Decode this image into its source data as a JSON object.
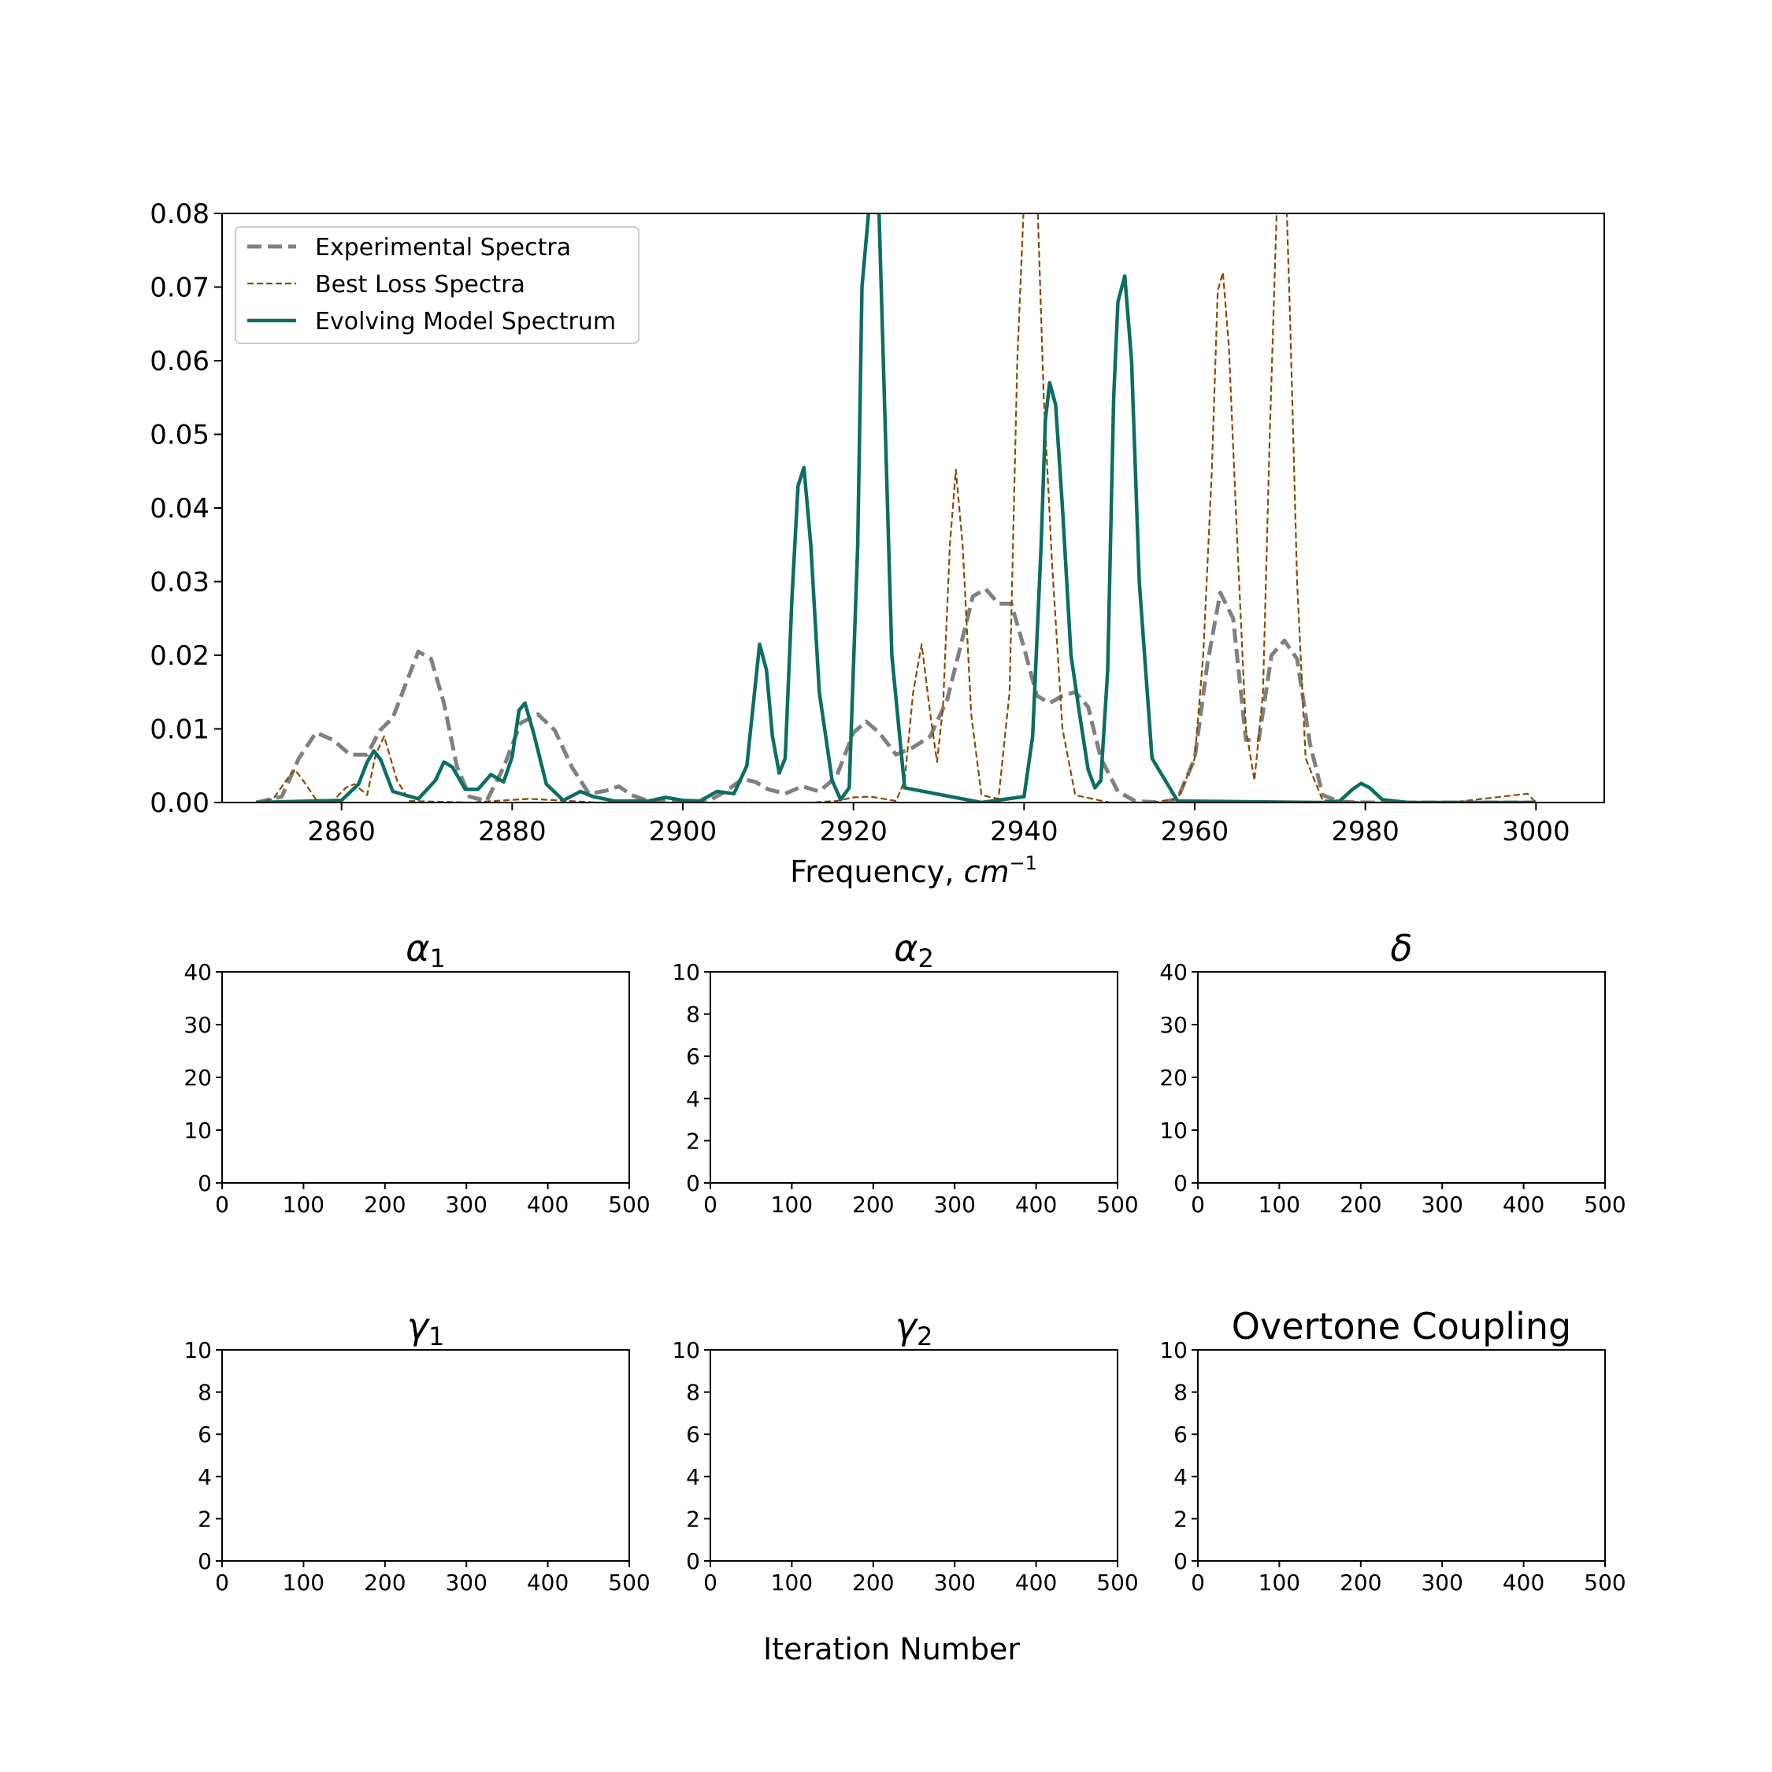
{
  "chart_data": [
    {
      "type": "line",
      "title": "",
      "xlabel": "Frequency, ",
      "xlabel_italic": "cm",
      "xlabel_sup": "−1",
      "ylabel": "",
      "xlim": [
        2846,
        3008
      ],
      "ylim": [
        0,
        0.08
      ],
      "xticks": [
        "2860",
        "2880",
        "2900",
        "2920",
        "2940",
        "2960",
        "2980",
        "3000"
      ],
      "xtick_values": [
        2860,
        2880,
        2900,
        2920,
        2940,
        2960,
        2980,
        3000
      ],
      "yticks": [
        "0.00",
        "0.01",
        "0.02",
        "0.03",
        "0.04",
        "0.05",
        "0.06",
        "0.07",
        "0.08"
      ],
      "ytick_values": [
        0,
        0.01,
        0.02,
        0.03,
        0.04,
        0.05,
        0.06,
        0.07,
        0.08
      ],
      "grid": false,
      "legend_position": "top-left",
      "series": [
        {
          "name": "Experimental Spectra",
          "color": "#808080",
          "style": "dashed-thick",
          "x": [
            2850,
            2853,
            2855,
            2857,
            2859,
            2861,
            2863,
            2864.5,
            2866,
            2867.5,
            2869,
            2870.5,
            2872,
            2873.5,
            2875,
            2877,
            2879,
            2881,
            2883,
            2885,
            2887,
            2889,
            2891,
            2892.5,
            2894,
            2896,
            2898,
            2900,
            2903,
            2905,
            2907,
            2908.5,
            2910,
            2912,
            2914,
            2916,
            2918,
            2920,
            2921.5,
            2923,
            2925,
            2927,
            2929,
            2931,
            2932.5,
            2934,
            2935.5,
            2937,
            2938.5,
            2940,
            2941.5,
            2943,
            2944.5,
            2946,
            2947.5,
            2949,
            2951,
            2953,
            2956,
            2958,
            2960,
            2961.5,
            2963,
            2964.5,
            2966,
            2967.5,
            2969,
            2970.5,
            2972,
            2973.5,
            2975,
            2977,
            2980,
            2985,
            2990,
            2995,
            3000
          ],
          "y": [
            0,
            0.0008,
            0.006,
            0.0095,
            0.0085,
            0.0065,
            0.0065,
            0.0098,
            0.0115,
            0.016,
            0.0205,
            0.0195,
            0.0135,
            0.005,
            0.0008,
            0.0002,
            0.0048,
            0.0108,
            0.012,
            0.0098,
            0.0048,
            0.0012,
            0.0016,
            0.0022,
            0.001,
            0.0002,
            0.0002,
            0.0002,
            0.0002,
            0.0015,
            0.0032,
            0.0028,
            0.0018,
            0.0012,
            0.0022,
            0.0015,
            0.0035,
            0.0095,
            0.011,
            0.0095,
            0.0065,
            0.0075,
            0.009,
            0.014,
            0.021,
            0.028,
            0.029,
            0.027,
            0.027,
            0.021,
            0.0145,
            0.0135,
            0.0145,
            0.015,
            0.013,
            0.006,
            0.0015,
            0.0002,
            0,
            0.0005,
            0.006,
            0.019,
            0.0285,
            0.025,
            0.0085,
            0.0085,
            0.02,
            0.022,
            0.0195,
            0.008,
            0.001,
            0.0001,
            0,
            0,
            0,
            0,
            0
          ]
        },
        {
          "name": "Best Loss Spectra",
          "color": "#8b4a00",
          "style": "dashed-thin",
          "x": [
            2850,
            2852,
            2853.5,
            2854.5,
            2855.5,
            2857,
            2859,
            2860.5,
            2861.5,
            2863,
            2864,
            2865,
            2866.5,
            2868,
            2875,
            2882,
            2890,
            2900,
            2915,
            2918,
            2920,
            2922,
            2925,
            2926,
            2927,
            2928,
            2929,
            2929.8,
            2930.5,
            2931.3,
            2932,
            2932.8,
            2933.8,
            2935,
            2937,
            2938.3,
            2939.2,
            2940,
            2941.2,
            2942.3,
            2943.3,
            2944.5,
            2946,
            2950,
            2955,
            2958,
            2960,
            2961,
            2962,
            2962.7,
            2963.3,
            2964,
            2965,
            2966,
            2967,
            2968,
            2968.8,
            2969.6,
            2970.4,
            2971.2,
            2972,
            2973,
            2975,
            2980,
            2990,
            2999,
            3000
          ],
          "y": [
            0,
            0.0005,
            0.003,
            0.0045,
            0.003,
            0.0004,
            0.0002,
            0.002,
            0.0025,
            0.001,
            0.0065,
            0.009,
            0.003,
            0.0002,
            0,
            0.0005,
            0,
            0,
            0,
            0.0002,
            0.0007,
            0.0008,
            0.0002,
            0.003,
            0.015,
            0.0215,
            0.012,
            0.0055,
            0.013,
            0.035,
            0.0452,
            0.035,
            0.012,
            0.001,
            0.0005,
            0.015,
            0.06,
            0.082,
            0.095,
            0.055,
            0.032,
            0.01,
            0.001,
            0,
            0,
            0.0005,
            0.006,
            0.02,
            0.045,
            0.0695,
            0.072,
            0.062,
            0.035,
            0.01,
            0.003,
            0.015,
            0.05,
            0.08,
            0.095,
            0.065,
            0.03,
            0.006,
            0.0003,
            0,
            0,
            0.0012,
            0
          ]
        },
        {
          "name": "Evolving Model Spectrum",
          "color": "#0b6e62",
          "style": "solid",
          "x": [
            2850,
            2860,
            2862,
            2863,
            2863.8,
            2864.6,
            2866,
            2869,
            2871,
            2872,
            2873,
            2874.5,
            2876,
            2877.5,
            2879,
            2880,
            2880.8,
            2881.5,
            2882.5,
            2884,
            2886,
            2888,
            2889.5,
            2892,
            2896,
            2898,
            2900,
            2902,
            2904,
            2906,
            2907.5,
            2908.5,
            2909,
            2909.8,
            2910.5,
            2911.3,
            2912,
            2912.8,
            2913.5,
            2914.2,
            2915,
            2916,
            2917.5,
            2918.5,
            2919.5,
            2920.5,
            2921,
            2922,
            2922.8,
            2923.5,
            2924.5,
            2926,
            2935,
            2940,
            2941,
            2942,
            2942.5,
            2943,
            2943.7,
            2944.5,
            2945.5,
            2946.5,
            2947.5,
            2948.3,
            2949,
            2949.8,
            2950.5,
            2951,
            2951.8,
            2952.6,
            2953.5,
            2955,
            2958,
            2975,
            2977,
            2978.5,
            2979.5,
            2980.5,
            2982,
            2985,
            3000
          ],
          "y": [
            0,
            0.0003,
            0.0025,
            0.0055,
            0.007,
            0.0058,
            0.0015,
            0.0005,
            0.003,
            0.0055,
            0.0048,
            0.0018,
            0.0018,
            0.0038,
            0.0028,
            0.0062,
            0.0125,
            0.0135,
            0.0095,
            0.0025,
            0.0003,
            0.0015,
            0.0008,
            0.0002,
            0.0002,
            0.0007,
            0.0003,
            0.0002,
            0.0015,
            0.0012,
            0.005,
            0.016,
            0.0215,
            0.018,
            0.009,
            0.004,
            0.006,
            0.028,
            0.043,
            0.0455,
            0.035,
            0.015,
            0.003,
            0.0004,
            0.002,
            0.035,
            0.07,
            0.083,
            0.088,
            0.06,
            0.02,
            0.002,
            0,
            0.0008,
            0.009,
            0.035,
            0.052,
            0.057,
            0.054,
            0.04,
            0.02,
            0.012,
            0.0045,
            0.002,
            0.003,
            0.018,
            0.055,
            0.068,
            0.0715,
            0.06,
            0.03,
            0.006,
            0.0002,
            0,
            0.0002,
            0.0018,
            0.0026,
            0.002,
            0.0004,
            0,
            0
          ]
        }
      ]
    },
    {
      "type": "line",
      "title": "α",
      "title_sub": "1",
      "title_style": "math",
      "xlabel": "",
      "ylabel": "",
      "xlim": [
        0,
        500
      ],
      "ylim": [
        0,
        40
      ],
      "xticks": [
        "0",
        "100",
        "200",
        "300",
        "400",
        "500"
      ],
      "xtick_values": [
        0,
        100,
        200,
        300,
        400,
        500
      ],
      "yticks": [
        "0",
        "10",
        "20",
        "30",
        "40"
      ],
      "ytick_values": [
        0,
        10,
        20,
        30,
        40
      ],
      "series": []
    },
    {
      "type": "line",
      "title": "α",
      "title_sub": "2",
      "title_style": "math",
      "xlabel": "",
      "ylabel": "",
      "xlim": [
        0,
        500
      ],
      "ylim": [
        0,
        10
      ],
      "xticks": [
        "0",
        "100",
        "200",
        "300",
        "400",
        "500"
      ],
      "xtick_values": [
        0,
        100,
        200,
        300,
        400,
        500
      ],
      "yticks": [
        "0",
        "2",
        "4",
        "6",
        "8",
        "10"
      ],
      "ytick_values": [
        0,
        2,
        4,
        6,
        8,
        10
      ],
      "series": []
    },
    {
      "type": "line",
      "title": "δ",
      "title_sub": "",
      "title_style": "math",
      "xlabel": "",
      "ylabel": "",
      "xlim": [
        0,
        500
      ],
      "ylim": [
        0,
        40
      ],
      "xticks": [
        "0",
        "100",
        "200",
        "300",
        "400",
        "500"
      ],
      "xtick_values": [
        0,
        100,
        200,
        300,
        400,
        500
      ],
      "yticks": [
        "0",
        "10",
        "20",
        "30",
        "40"
      ],
      "ytick_values": [
        0,
        10,
        20,
        30,
        40
      ],
      "series": []
    },
    {
      "type": "line",
      "title": "γ",
      "title_sub": "1",
      "title_style": "math",
      "xlabel": "",
      "ylabel": "",
      "xlim": [
        0,
        500
      ],
      "ylim": [
        0,
        10
      ],
      "xticks": [
        "0",
        "100",
        "200",
        "300",
        "400",
        "500"
      ],
      "xtick_values": [
        0,
        100,
        200,
        300,
        400,
        500
      ],
      "yticks": [
        "0",
        "2",
        "4",
        "6",
        "8",
        "10"
      ],
      "ytick_values": [
        0,
        2,
        4,
        6,
        8,
        10
      ],
      "series": []
    },
    {
      "type": "line",
      "title": "γ",
      "title_sub": "2",
      "title_style": "math",
      "xlabel": "",
      "ylabel": "",
      "xlim": [
        0,
        500
      ],
      "ylim": [
        0,
        10
      ],
      "xticks": [
        "0",
        "100",
        "200",
        "300",
        "400",
        "500"
      ],
      "xtick_values": [
        0,
        100,
        200,
        300,
        400,
        500
      ],
      "yticks": [
        "0",
        "2",
        "4",
        "6",
        "8",
        "10"
      ],
      "ytick_values": [
        0,
        2,
        4,
        6,
        8,
        10
      ],
      "series": []
    },
    {
      "type": "line",
      "title": "Overtone Coupling",
      "title_sub": "",
      "title_style": "plain",
      "xlabel": "",
      "ylabel": "",
      "xlim": [
        0,
        500
      ],
      "ylim": [
        0,
        10
      ],
      "xticks": [
        "0",
        "100",
        "200",
        "300",
        "400",
        "500"
      ],
      "xtick_values": [
        0,
        100,
        200,
        300,
        400,
        500
      ],
      "yticks": [
        "0",
        "2",
        "4",
        "6",
        "8",
        "10"
      ],
      "ytick_values": [
        0,
        2,
        4,
        6,
        8,
        10
      ],
      "series": []
    }
  ],
  "shared_xlabel": "Iteration Number"
}
